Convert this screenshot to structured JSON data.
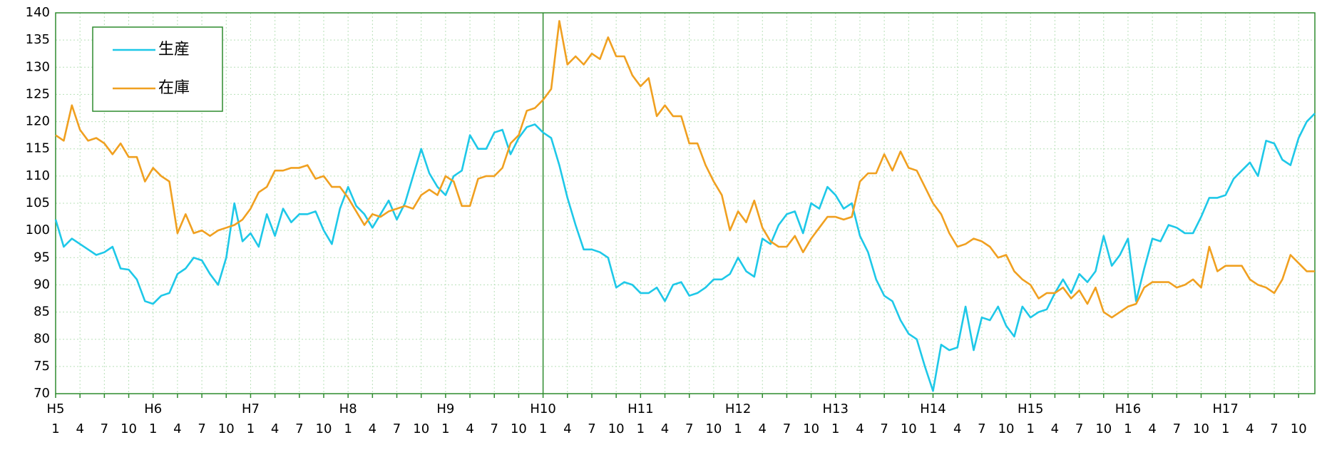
{
  "chart_data": {
    "type": "line",
    "categories": [
      "1",
      null,
      null,
      "4",
      null,
      null,
      "7",
      null,
      null,
      "10",
      null,
      null,
      "1",
      null,
      null,
      "4",
      null,
      null,
      "7",
      null,
      null,
      "10",
      null,
      null,
      "1",
      null,
      null,
      "4",
      null,
      null,
      "7",
      null,
      null,
      "10",
      null,
      null,
      "1",
      null,
      null,
      "4",
      null,
      null,
      "7",
      null,
      null,
      "10",
      null,
      null,
      "1",
      null,
      null,
      "4",
      null,
      null,
      "7",
      null,
      null,
      "10",
      null,
      null,
      "1",
      null,
      null,
      "4",
      null,
      null,
      "7",
      null,
      null,
      "10",
      null,
      null,
      "1",
      null,
      null,
      "4",
      null,
      null,
      "7",
      null,
      null,
      "10",
      null,
      null,
      "1",
      null,
      null,
      "4",
      null,
      null,
      "7",
      null,
      null,
      "10",
      null,
      null,
      "1",
      null,
      null,
      "4",
      null,
      null,
      "7",
      null,
      null,
      "10",
      null,
      null,
      "1",
      null,
      null,
      "4",
      null,
      null,
      "7",
      null,
      null,
      "10",
      null,
      null,
      "1",
      null,
      null,
      "4",
      null,
      null,
      "7",
      null,
      null,
      "10",
      null,
      null,
      "1",
      null,
      null,
      "4",
      null,
      null,
      "7",
      null,
      null,
      "10",
      null,
      null,
      "1",
      null,
      null,
      "4",
      null,
      null,
      "7",
      null,
      null,
      "10",
      null,
      null
    ],
    "year_labels": [
      "H5",
      "H6",
      "H7",
      "H8",
      "H9",
      "H10",
      "H11",
      "H12",
      "H13",
      "H14",
      "H15",
      "H16",
      "H17"
    ],
    "vline": "H10",
    "series": [
      {
        "name": "生産",
        "color": "#1ec8e8",
        "values": [
          102,
          97,
          98.5,
          97.5,
          96.5,
          95.5,
          96,
          97,
          93,
          92.8,
          91,
          87,
          86.5,
          88,
          88.5,
          92,
          93,
          95,
          94.5,
          92,
          90,
          95,
          105,
          98,
          99.5,
          97,
          103,
          99,
          104,
          101.5,
          103,
          103,
          103.5,
          100,
          97.5,
          104,
          108,
          104.5,
          103,
          100.5,
          103,
          105.5,
          102,
          105,
          110,
          115,
          110.5,
          108,
          106.5,
          110,
          111,
          117.5,
          115,
          115,
          118,
          118.5,
          114,
          117,
          119,
          119.5,
          118,
          117,
          112,
          106,
          101,
          96.5,
          96.5,
          96,
          95,
          89.5,
          90.5,
          90,
          88.5,
          88.5,
          89.5,
          87,
          90,
          90.5,
          88,
          88.5,
          89.5,
          91,
          91,
          92,
          95,
          92.5,
          91.5,
          98.5,
          97.5,
          101,
          103,
          103.5,
          99.5,
          105,
          104,
          108,
          106.5,
          104,
          105,
          99,
          96,
          91,
          88,
          87,
          83.5,
          81,
          80,
          75,
          70.5,
          79,
          78,
          78.5,
          86,
          78,
          84,
          83.5,
          86,
          82.5,
          80.5,
          86,
          84,
          85,
          85.5,
          88.5,
          91,
          88.5,
          92,
          90.5,
          92.5,
          99,
          93.5,
          95.5,
          98.5,
          87,
          93,
          98.5,
          98,
          101,
          100.5,
          99.5,
          99.5,
          102.5,
          106,
          106,
          106.5,
          109.5,
          111,
          112.5,
          110,
          116.5,
          116,
          113,
          112,
          117,
          120,
          121.5
        ]
      },
      {
        "name": "在庫",
        "color": "#f0a020",
        "values": [
          117.5,
          116.5,
          123,
          118.5,
          116.5,
          117,
          116,
          114,
          116,
          113.5,
          113.5,
          109,
          111.5,
          110,
          109,
          99.5,
          103,
          99.5,
          100,
          99,
          100,
          100.5,
          101,
          102,
          104,
          107,
          108,
          111,
          111,
          111.5,
          111.5,
          112,
          109.5,
          110,
          108,
          108,
          106,
          103.5,
          101,
          103,
          102.5,
          103.5,
          104,
          104.5,
          104,
          106.5,
          107.5,
          106.5,
          110,
          109,
          104.5,
          104.5,
          109.5,
          110,
          110,
          111.5,
          116,
          117.5,
          122,
          122.5,
          124,
          126,
          138.5,
          130.5,
          132,
          130.5,
          132.5,
          131.5,
          135.5,
          132,
          132,
          128.5,
          126.5,
          128,
          121,
          123,
          121,
          121,
          116,
          116,
          112,
          109,
          106.5,
          100,
          103.5,
          101.5,
          105.5,
          100.5,
          98,
          97,
          97,
          99,
          96,
          98.5,
          100.5,
          102.5,
          102.5,
          102,
          102.5,
          109,
          110.5,
          110.5,
          114,
          111,
          114.5,
          111.5,
          111,
          108,
          105,
          103,
          99.5,
          97,
          97.5,
          98.5,
          98,
          97,
          95,
          95.5,
          92.5,
          91,
          90,
          87.5,
          88.5,
          88.5,
          89.5,
          87.5,
          89,
          86.5,
          89.5,
          85,
          84,
          85,
          86,
          86.5,
          89.5,
          90.5,
          90.5,
          90.5,
          89.5,
          90,
          91,
          89.5,
          97,
          92.5,
          93.5,
          93.5,
          93.5,
          91,
          90,
          89.5,
          88.5,
          91,
          95.5,
          94,
          92.5,
          92.5
        ]
      }
    ],
    "ylim": [
      70,
      140
    ],
    "yticks": [
      70,
      75,
      80,
      85,
      90,
      95,
      100,
      105,
      110,
      115,
      120,
      125,
      130,
      135,
      140
    ],
    "grid": true,
    "legend": "upper left",
    "axis_color": "#2e8b2e"
  }
}
